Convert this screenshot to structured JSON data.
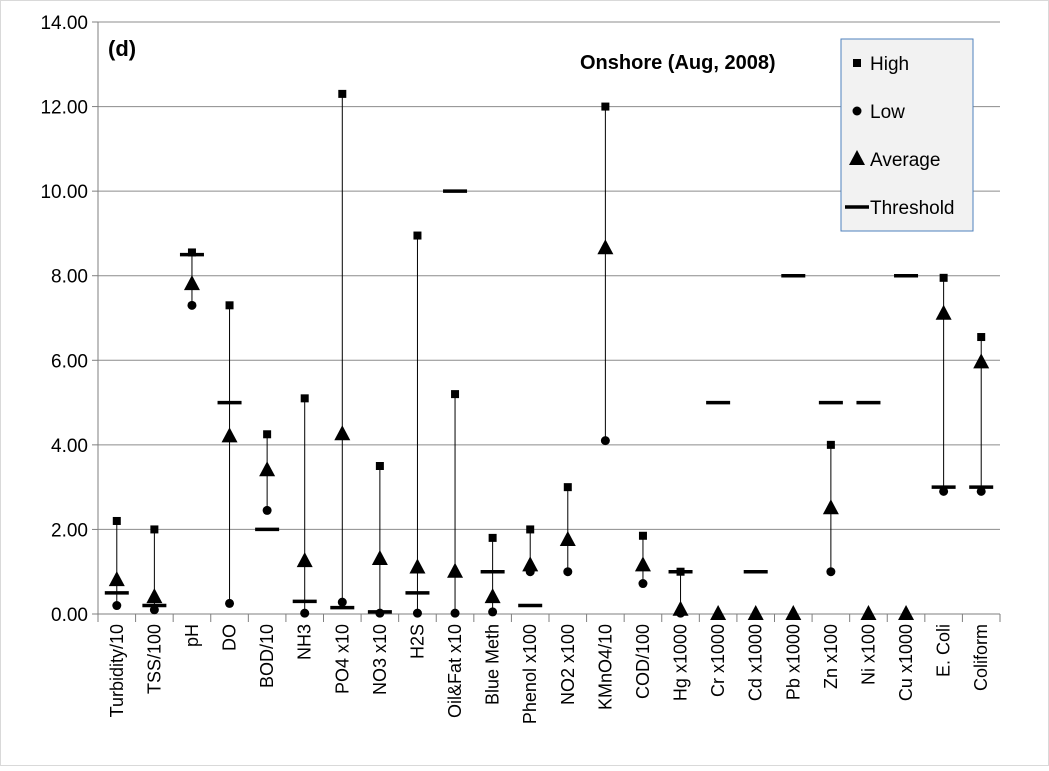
{
  "chart_data": {
    "type": "scatter",
    "panel_label": "(d)",
    "title": "Onshore (Aug, 2008)",
    "ylim": [
      0,
      14
    ],
    "yticks": [
      "0.00",
      "2.00",
      "4.00",
      "6.00",
      "8.00",
      "10.00",
      "12.00",
      "14.00"
    ],
    "grid": "horizontal",
    "legend_position": "top-right",
    "categories": [
      "Turbidity/10",
      "TSS/100",
      "pH",
      "DO",
      "BOD/10",
      "NH3",
      "PO4 x10",
      "NO3 x10",
      "H2S",
      "Oil&Fat x10",
      "Blue Meth",
      "Phenol x100",
      "NO2 x100",
      "KMnO4/10",
      "COD/100",
      "Hg x1000",
      "Cr x1000",
      "Cd x1000",
      "Pb x1000",
      "Zn x100",
      "Ni x100",
      "Cu x1000",
      "E. Coli",
      "Coliform"
    ],
    "series": [
      {
        "name": "High",
        "marker": "square",
        "values": [
          2.2,
          2.0,
          8.55,
          7.3,
          4.25,
          5.1,
          12.3,
          3.5,
          8.95,
          5.2,
          1.8,
          2.0,
          3.0,
          12.0,
          1.85,
          1.0,
          null,
          null,
          null,
          4.0,
          null,
          null,
          7.95,
          6.55
        ]
      },
      {
        "name": "Low",
        "marker": "circle",
        "values": [
          0.2,
          0.1,
          7.3,
          0.25,
          2.45,
          0.02,
          0.28,
          0.02,
          0.02,
          0.02,
          0.05,
          1.0,
          1.0,
          4.1,
          0.72,
          0.02,
          null,
          null,
          null,
          1.0,
          null,
          null,
          2.9,
          2.9
        ]
      },
      {
        "name": "Average",
        "marker": "triangle",
        "values": [
          0.8,
          0.4,
          7.8,
          4.2,
          3.4,
          1.25,
          4.25,
          1.3,
          1.1,
          1.0,
          0.4,
          1.15,
          1.75,
          8.65,
          1.15,
          0.1,
          0.0,
          0.0,
          0.0,
          2.5,
          0.0,
          0.0,
          7.1,
          5.95
        ]
      },
      {
        "name": "Threshold",
        "marker": "dash",
        "values": [
          0.5,
          0.2,
          8.5,
          5.0,
          2.0,
          0.3,
          0.15,
          0.05,
          0.5,
          10.0,
          1.0,
          0.2,
          null,
          null,
          null,
          1.0,
          5.0,
          1.0,
          8.0,
          5.0,
          5.0,
          8.0,
          3.0,
          3.0
        ]
      }
    ]
  }
}
